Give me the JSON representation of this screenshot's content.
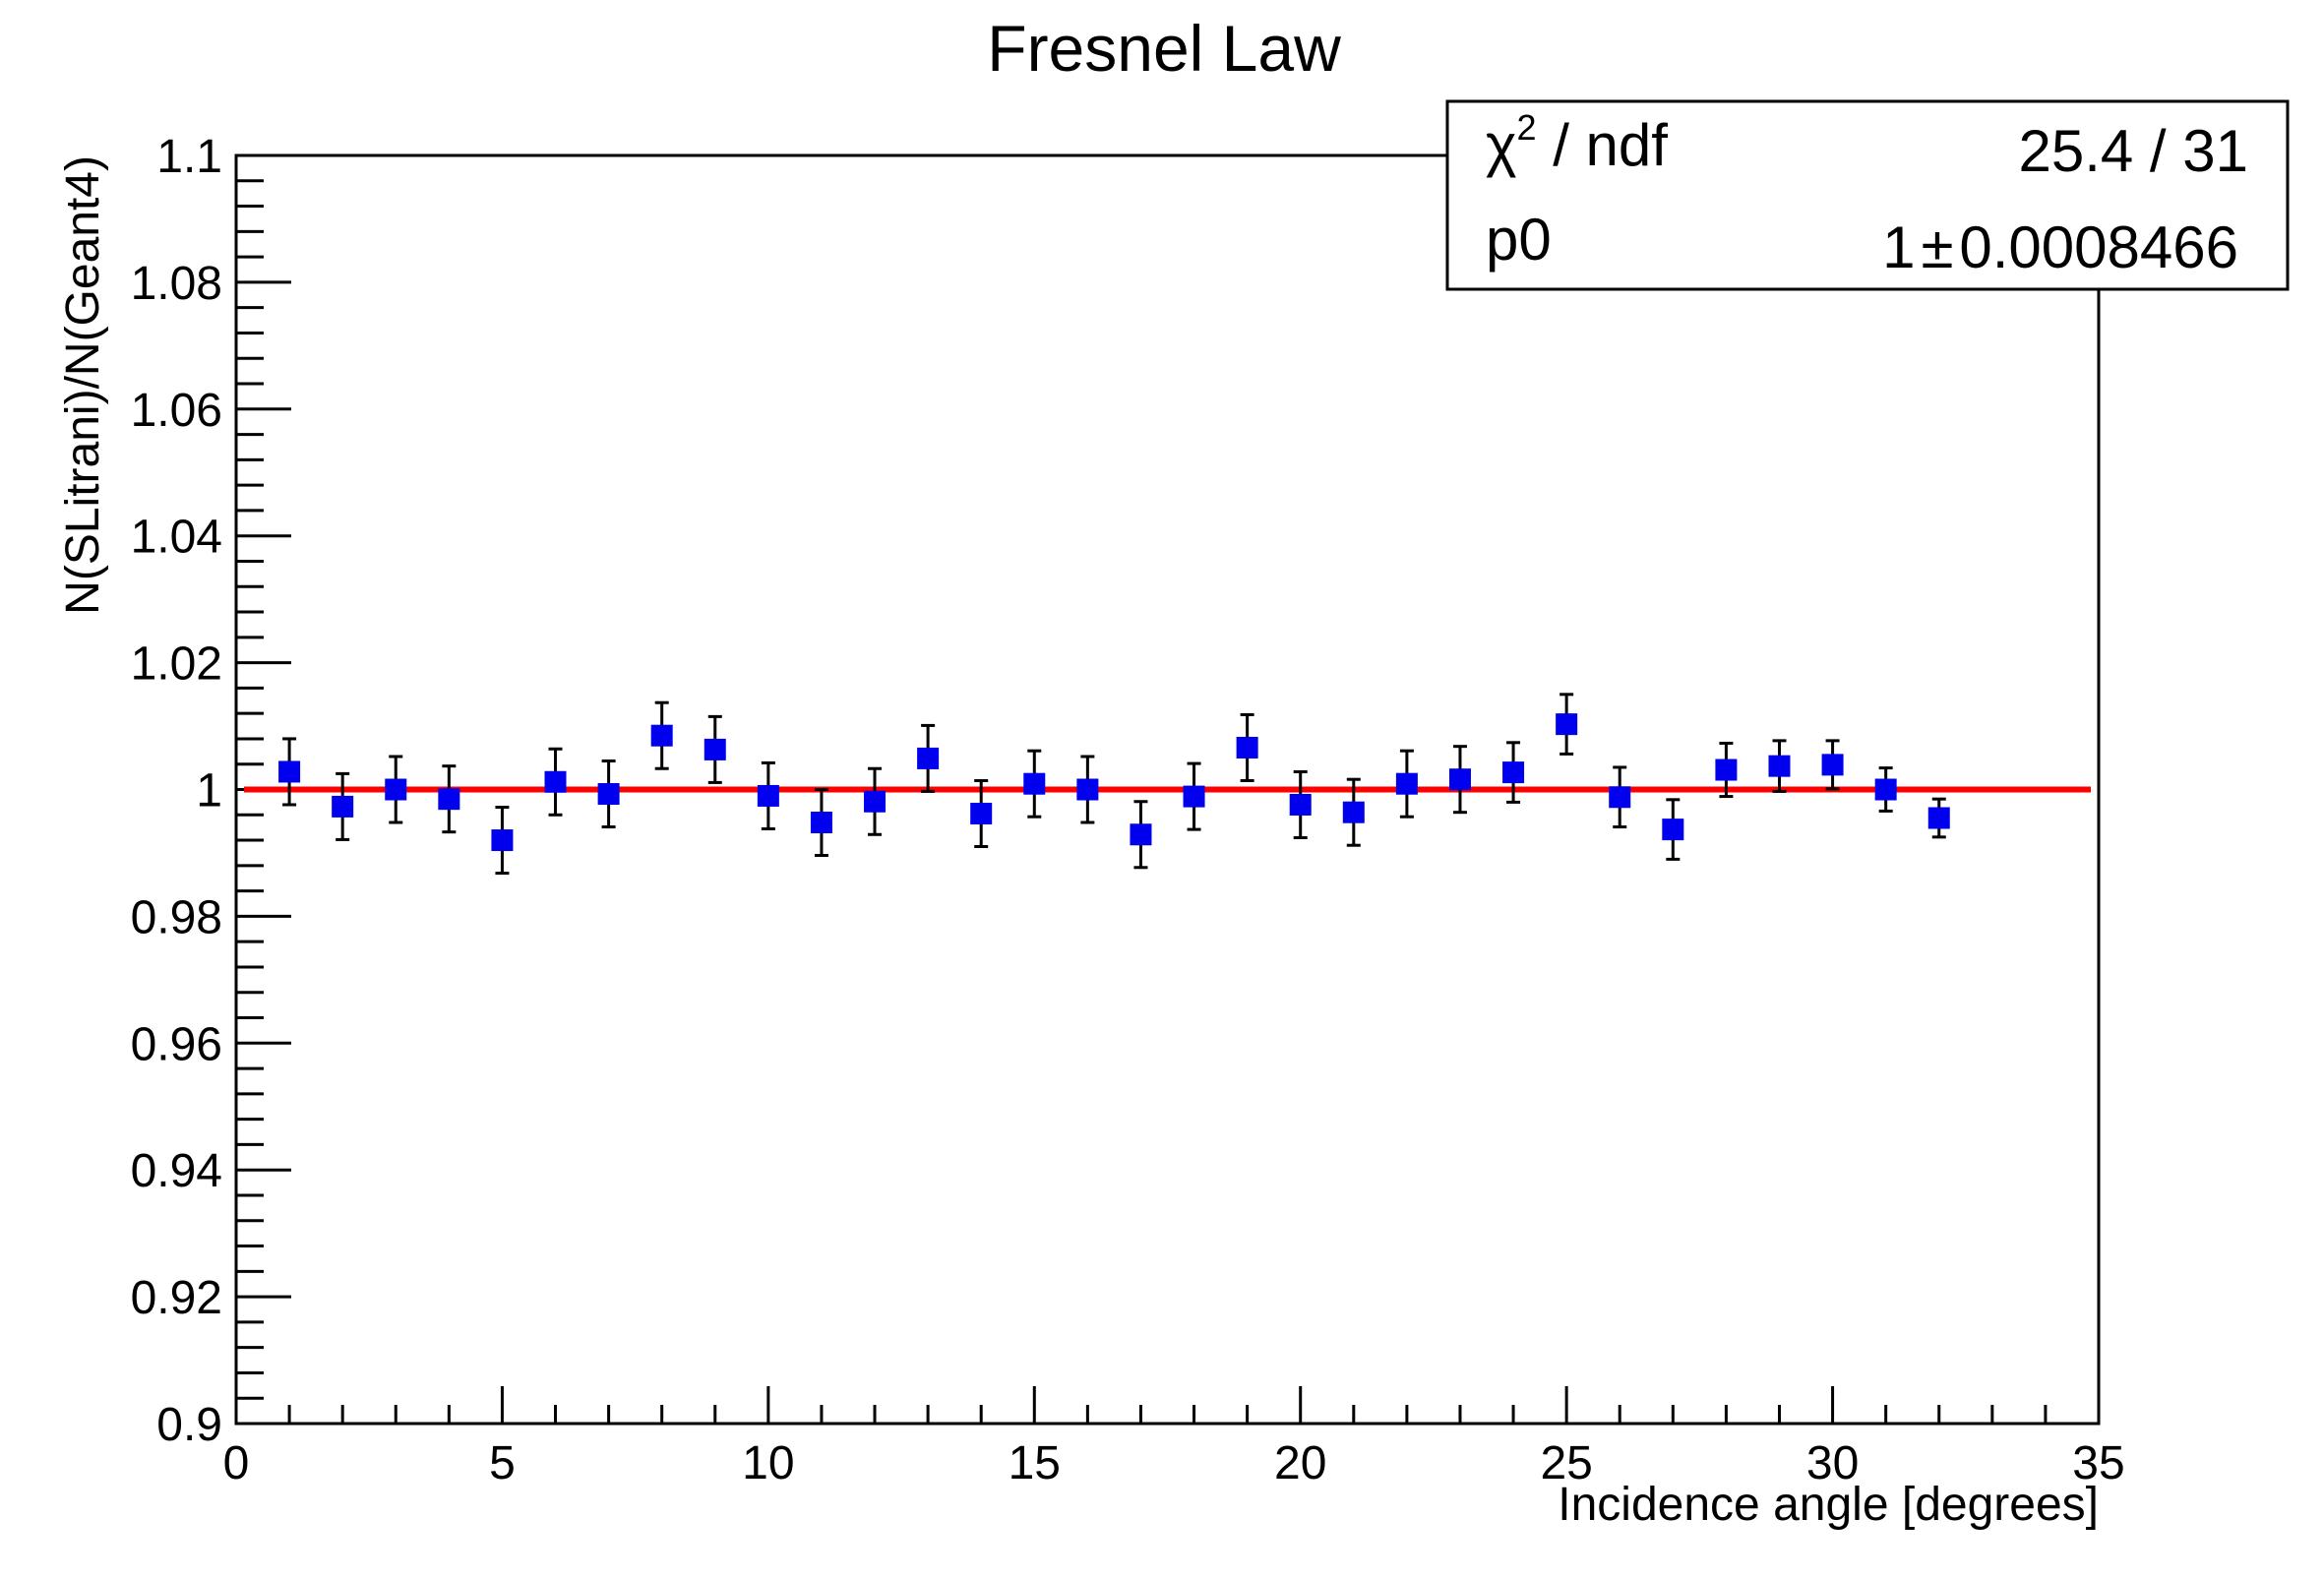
{
  "chart_data": {
    "type": "scatter",
    "title": "Fresnel Law",
    "xlabel": "Incidence angle [degrees]",
    "ylabel": "N(SLitrani)/N(Geant4)",
    "xlim": [
      0,
      35
    ],
    "ylim": [
      0.9,
      1.1
    ],
    "x_ticks": [
      0,
      5,
      10,
      15,
      20,
      25,
      30,
      35
    ],
    "x_tick_labels": [
      "0",
      "5",
      "10",
      "15",
      "20",
      "25",
      "30",
      "35"
    ],
    "y_ticks": [
      0.9,
      0.92,
      0.94,
      0.96,
      0.98,
      1.0,
      1.02,
      1.04,
      1.06,
      1.08,
      1.1
    ],
    "y_tick_labels": [
      "0.9",
      "0.92",
      "0.94",
      "0.96",
      "0.98",
      "1",
      "1.02",
      "1.04",
      "1.06",
      "1.08",
      "1.1"
    ],
    "grid": false,
    "series": [
      {
        "marker": "square",
        "color": "#0000ee",
        "x": [
          1,
          2,
          3,
          4,
          5,
          6,
          7,
          8,
          9,
          10,
          11,
          12,
          13,
          14,
          15,
          16,
          17,
          18,
          19,
          20,
          21,
          22,
          23,
          24,
          25,
          26,
          27,
          28,
          29,
          30,
          31,
          32
        ],
        "y": [
          1.0028,
          0.9973,
          1.0,
          0.9985,
          0.992,
          1.0012,
          0.9993,
          1.0085,
          1.0063,
          0.999,
          0.9948,
          0.9981,
          1.0049,
          0.9962,
          1.0009,
          1.0,
          0.9929,
          0.9989,
          1.0066,
          0.9976,
          0.9964,
          1.0009,
          1.0016,
          1.0027,
          1.0103,
          0.9988,
          0.9937,
          1.0031,
          1.0037,
          1.0039,
          1.0,
          0.9955
        ],
        "err": [
          0.0052,
          0.0052,
          0.0052,
          0.0052,
          0.0052,
          0.0052,
          0.0052,
          0.0052,
          0.0052,
          0.0052,
          0.0052,
          0.0052,
          0.0052,
          0.0052,
          0.0052,
          0.0052,
          0.0052,
          0.0052,
          0.0052,
          0.0052,
          0.0052,
          0.0052,
          0.0052,
          0.0047,
          0.0047,
          0.0047,
          0.0047,
          0.0042,
          0.004,
          0.0038,
          0.0034,
          0.003
        ]
      }
    ],
    "fit": {
      "color": "#ff0000",
      "value": 1.0,
      "xrange": [
        0,
        35
      ]
    },
    "stats_box": {
      "chi2_symbol": "χ",
      "chi2_sup": "2",
      "chi2_label": " / ndf",
      "chi2_value": "25.4 / 31",
      "p0_label": "p0",
      "p0_value": "1",
      "pm_symbol": "±",
      "p0_error": "0.0008466"
    }
  }
}
